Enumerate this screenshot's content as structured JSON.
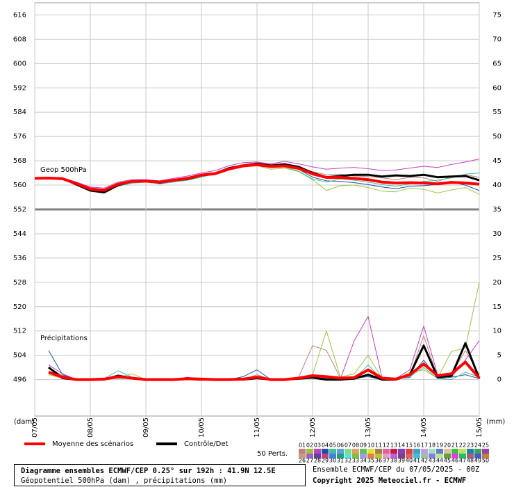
{
  "chart_data": {
    "type": "line",
    "geop_label": "Geop 500hPa",
    "precip_label": "Précipitations",
    "y_unit": "(dam)",
    "y2_unit": "(mm)",
    "categories": [
      "07/05",
      null,
      null,
      null,
      "08/05",
      null,
      null,
      null,
      "09/05",
      null,
      null,
      null,
      "10/05",
      null,
      null,
      null,
      "11/05",
      null,
      null,
      null,
      "12/05",
      null,
      null,
      null,
      "13/05",
      null,
      null,
      null,
      "14/05",
      null,
      null,
      null,
      "15/05"
    ],
    "ylim": [
      484,
      620
    ],
    "yticks": [
      616,
      608,
      600,
      592,
      584,
      576,
      568,
      560,
      552,
      544,
      536,
      528,
      520,
      512,
      504,
      496
    ],
    "y2lim": [
      -7.5,
      77.5
    ],
    "y2ticks": [
      75,
      70,
      65,
      60,
      55,
      50,
      45,
      40,
      35,
      30,
      25,
      20,
      15,
      10,
      5,
      0
    ],
    "divider": 552,
    "grid": true,
    "series": [
      {
        "name": "Moyenne des scénarios",
        "color": "#ff0000",
        "geop": [
          562.2,
          562.3,
          562.1,
          560.5,
          558.7,
          558.3,
          560.3,
          561.2,
          561.3,
          561.0,
          561.6,
          562.2,
          563.3,
          563.8,
          565.3,
          566.3,
          566.7,
          566.1,
          566.3,
          565.5,
          563.7,
          562.5,
          562.5,
          562.2,
          561.8,
          561.0,
          560.7,
          560.8,
          560.7,
          560.4,
          560.9,
          560.7,
          560.3
        ],
        "precip": [
          null,
          1.5,
          0.5,
          0,
          0,
          0.1,
          0.6,
          0.3,
          0,
          0,
          0,
          0.2,
          0.1,
          0,
          0,
          0.1,
          0.5,
          0,
          0,
          0.3,
          0.8,
          0.6,
          0.3,
          0.4,
          2.0,
          0.3,
          0.1,
          1.0,
          3.2,
          0.8,
          1.2,
          3.6,
          0.3
        ]
      },
      {
        "name": "Contrôle/Det",
        "color": "#000000",
        "geop": [
          562.2,
          562.3,
          562.2,
          560.2,
          558.2,
          557.6,
          560.0,
          561.2,
          561.4,
          560.8,
          561.6,
          562.0,
          563.2,
          563.8,
          565.6,
          566.4,
          567.0,
          566.4,
          566.8,
          566.0,
          564.0,
          562.6,
          563.0,
          563.4,
          563.4,
          562.8,
          563.2,
          563.0,
          563.4,
          562.6,
          562.8,
          563.0,
          561.6
        ],
        "precip": [
          null,
          2.5,
          0.3,
          0,
          0,
          0,
          0.8,
          0.3,
          0,
          0,
          0,
          0.1,
          0,
          0,
          0,
          0,
          0.3,
          0,
          0,
          0.2,
          0.4,
          0,
          0,
          0.2,
          1.0,
          0,
          0,
          1.0,
          7.0,
          0.5,
          0.8,
          7.5,
          0.2
        ]
      }
    ],
    "perturbations": {
      "label": "50 Perts.",
      "members": [
        {
          "name": "01",
          "color": "#c08080",
          "geop": [
            562.2,
            562.4,
            562.3,
            560.8,
            559.2,
            558.6,
            560.5,
            561.4,
            561.5,
            561.0,
            561.8,
            562.6,
            563.6,
            564.2,
            565.8,
            566.8,
            567.4,
            566.8,
            567.2,
            566.0,
            564.4,
            563.4,
            563.6,
            563.0,
            562.8,
            562.4,
            561.8,
            562.6,
            562.4,
            561.2,
            562.8,
            563.4,
            562.6
          ],
          "precip": [
            null,
            2.5,
            0.8,
            0,
            0,
            0.2,
            0.6,
            0.2,
            0,
            0,
            0,
            0.1,
            0,
            0,
            0,
            0,
            1.0,
            0,
            0,
            0.5,
            7.0,
            6.0,
            0.3,
            0.5,
            2.0,
            0.1,
            0,
            0.8,
            9.0,
            0.5,
            1.0,
            6.0,
            1.0
          ]
        },
        {
          "name": "02",
          "color": "#a0c040",
          "geop": [
            562.1,
            562.2,
            561.9,
            560.1,
            558.0,
            557.6,
            560.0,
            561.0,
            561.0,
            560.6,
            561.2,
            561.8,
            562.8,
            563.6,
            565.0,
            566.0,
            566.4,
            565.2,
            565.6,
            564.4,
            561.8,
            558.2,
            559.8,
            560.0,
            559.2,
            558.0,
            557.8,
            559.0,
            558.6,
            557.4,
            558.4,
            559.2,
            557.0
          ],
          "precip": [
            null,
            1.0,
            0.3,
            0,
            0,
            0.1,
            0.4,
            1.2,
            0,
            0,
            0,
            0.3,
            0.2,
            0,
            0,
            0,
            0.5,
            0,
            0,
            0.2,
            1.0,
            10.0,
            0.5,
            1.2,
            5.0,
            0.2,
            0,
            1.5,
            2.0,
            0.3,
            5.8,
            6.5,
            20.0
          ]
        },
        {
          "name": "03",
          "color": "#c040c0",
          "geop": [
            562.3,
            562.5,
            562.4,
            561.0,
            559.4,
            559.0,
            561.0,
            561.8,
            561.8,
            561.4,
            562.2,
            563.0,
            564.0,
            564.8,
            566.4,
            567.4,
            567.6,
            567.0,
            567.8,
            567.0,
            566.0,
            565.2,
            565.6,
            565.8,
            565.4,
            564.8,
            565.0,
            565.6,
            566.2,
            565.8,
            566.8,
            567.6,
            568.6
          ],
          "precip": [
            null,
            3.0,
            1.2,
            0,
            0,
            0,
            0.8,
            0.4,
            0,
            0,
            0,
            0.5,
            0,
            0,
            0.2,
            0,
            0.2,
            0,
            0,
            0.1,
            0.4,
            0.2,
            0.1,
            8.0,
            13.0,
            0.4,
            0.2,
            2.0,
            11.0,
            1.0,
            0.5,
            4.0,
            8.0
          ]
        },
        {
          "name": "04",
          "color": "#2050a0",
          "geop": [
            562.2,
            562.2,
            562.0,
            560.2,
            558.4,
            558.2,
            560.2,
            561.0,
            561.2,
            560.8,
            561.4,
            562.0,
            563.0,
            563.4,
            565.0,
            566.0,
            566.6,
            566.2,
            566.6,
            565.2,
            562.6,
            561.4,
            561.2,
            560.8,
            560.2,
            559.4,
            558.8,
            559.6,
            559.8,
            560.2,
            561.0,
            560.0,
            558.2
          ],
          "precip": [
            null,
            6.0,
            1.0,
            0,
            0,
            0,
            0.3,
            0.2,
            0,
            0,
            0,
            0.2,
            0,
            0,
            0,
            0.6,
            2.0,
            0,
            0,
            0.3,
            0.5,
            0.2,
            0,
            0.3,
            0.6,
            0,
            0.2,
            0.4,
            4.0,
            0.2,
            0.5,
            1.0,
            0.2
          ]
        },
        {
          "name": "05",
          "color": "#40c0a0",
          "geop": [
            562.0,
            562.1,
            562.0,
            560.6,
            559.0,
            558.0,
            559.6,
            560.6,
            561.0,
            560.4,
            561.0,
            561.6,
            562.6,
            563.8,
            565.4,
            566.2,
            566.8,
            566.4,
            566.0,
            564.6,
            562.0,
            561.0,
            562.0,
            561.6,
            561.0,
            560.2,
            559.6,
            560.4,
            561.2,
            561.6,
            562.4,
            563.6,
            564.0
          ],
          "precip": [
            null,
            1.8,
            0.4,
            0,
            0,
            0.2,
            1.8,
            0.5,
            0,
            0,
            0,
            0,
            0,
            0,
            0,
            0,
            0.3,
            0,
            0,
            0,
            0.8,
            0.4,
            0,
            0.2,
            3.0,
            0,
            0,
            0.6,
            2.5,
            0.2,
            0,
            1.5,
            0.5
          ]
        },
        {
          "name": "06",
          "color": "#60a0e0"
        },
        {
          "name": "07",
          "color": "#80e080"
        },
        {
          "name": "08",
          "color": "#e0a060"
        },
        {
          "name": "09",
          "color": "#60c060"
        },
        {
          "name": "10",
          "color": "#e0e040"
        },
        {
          "name": "11",
          "color": "#a08040"
        },
        {
          "name": "12",
          "color": "#e060a0"
        },
        {
          "name": "13",
          "color": "#c02040"
        },
        {
          "name": "14",
          "color": "#8040c0"
        },
        {
          "name": "15",
          "color": "#e04040"
        },
        {
          "name": "16",
          "color": "#40a0c0"
        },
        {
          "name": "17",
          "color": "#c0a0e0"
        },
        {
          "name": "18",
          "color": "#a0e0c0"
        },
        {
          "name": "19",
          "color": "#6080c0"
        },
        {
          "name": "20",
          "color": "#e0c0a0"
        },
        {
          "name": "21",
          "color": "#40c040"
        },
        {
          "name": "22",
          "color": "#c0e060"
        },
        {
          "name": "23",
          "color": "#2080a0"
        },
        {
          "name": "24",
          "color": "#40a060"
        },
        {
          "name": "25",
          "color": "#a040a0"
        },
        {
          "name": "26",
          "color": "#c0a080"
        },
        {
          "name": "27",
          "color": "#a060c0"
        },
        {
          "name": "28",
          "color": "#6040a0"
        },
        {
          "name": "29",
          "color": "#c04080"
        },
        {
          "name": "30",
          "color": "#4080e0"
        },
        {
          "name": "31",
          "color": "#20a080"
        },
        {
          "name": "32",
          "color": "#60e0e0"
        },
        {
          "name": "33",
          "color": "#80c040"
        },
        {
          "name": "34",
          "color": "#a0a0e0"
        },
        {
          "name": "35",
          "color": "#e08040"
        },
        {
          "name": "36",
          "color": "#c0c040"
        },
        {
          "name": "37",
          "color": "#e0a0c0"
        },
        {
          "name": "38",
          "color": "#c060e0"
        },
        {
          "name": "39",
          "color": "#804080"
        },
        {
          "name": "40",
          "color": "#e06060"
        },
        {
          "name": "41",
          "color": "#40c0e0"
        },
        {
          "name": "42",
          "color": "#a0c0a0"
        },
        {
          "name": "43",
          "color": "#8080e0"
        },
        {
          "name": "44",
          "color": "#c0e0a0"
        },
        {
          "name": "45",
          "color": "#60a040"
        },
        {
          "name": "46",
          "color": "#e040e0"
        },
        {
          "name": "47",
          "color": "#20c060"
        },
        {
          "name": "48",
          "color": "#a06080"
        },
        {
          "name": "49",
          "color": "#4060c0"
        },
        {
          "name": "50",
          "color": "#c08040"
        }
      ]
    },
    "footer_title": "Diagramme ensembles ECMWF/CEP 0.25° sur 192h : 41.9N 12.5E",
    "footer_subtitle": "Géopotentiel 500hPa (dam) , précipitations (mm)",
    "run_info": "Ensemble ECMWF/CEP du 07/05/2025 - 00Z",
    "copyright": "Copyright 2025 Meteociel.fr - ECMWF"
  }
}
